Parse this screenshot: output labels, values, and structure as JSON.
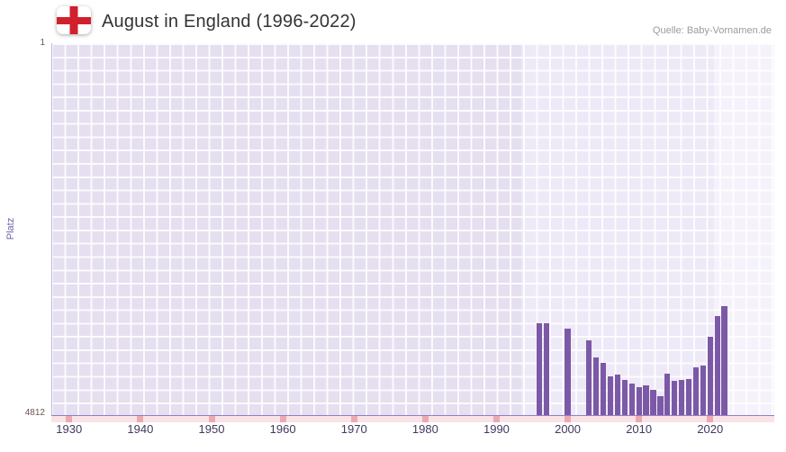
{
  "header": {
    "title": "August in England (1996-2022)",
    "source": "Quelle: Baby-Vornamen.de",
    "flag_icon": "england-st-george-cross-flag"
  },
  "chart_data": {
    "type": "bar",
    "title": "August in England (1996-2022)",
    "xlabel": "",
    "ylabel": "Platz",
    "legend": "none",
    "y_axis": {
      "min": 1,
      "max": 4812,
      "inverted": true,
      "tick_labels": [
        "1",
        "4812"
      ]
    },
    "x_axis": {
      "min": 1927.5,
      "max": 2029,
      "tick_years": [
        1930,
        1940,
        1950,
        1960,
        1970,
        1980,
        1990,
        2000,
        2010,
        2020
      ]
    },
    "plot_bands": [
      {
        "from": 1927.5,
        "to": 1993.5,
        "color": "#e5dff0"
      },
      {
        "from": 1993.5,
        "to": 2020.5,
        "color": "#eee9f7"
      },
      {
        "from": 2020.5,
        "to": 2029.0,
        "color": "#f5f2fb"
      }
    ],
    "series": [
      {
        "name": "Platz",
        "color": "#7c59a7",
        "points": [
          {
            "year": 1996,
            "rank": 3620
          },
          {
            "year": 1997,
            "rank": 3620
          },
          {
            "year": 2000,
            "rank": 3690
          },
          {
            "year": 2003,
            "rank": 3840
          },
          {
            "year": 2004,
            "rank": 4060
          },
          {
            "year": 2005,
            "rank": 4130
          },
          {
            "year": 2006,
            "rank": 4300
          },
          {
            "year": 2007,
            "rank": 4280
          },
          {
            "year": 2008,
            "rank": 4350
          },
          {
            "year": 2009,
            "rank": 4390
          },
          {
            "year": 2010,
            "rank": 4440
          },
          {
            "year": 2011,
            "rank": 4420
          },
          {
            "year": 2012,
            "rank": 4470
          },
          {
            "year": 2013,
            "rank": 4560
          },
          {
            "year": 2014,
            "rank": 4270
          },
          {
            "year": 2015,
            "rank": 4360
          },
          {
            "year": 2016,
            "rank": 4350
          },
          {
            "year": 2017,
            "rank": 4330
          },
          {
            "year": 2018,
            "rank": 4190
          },
          {
            "year": 2019,
            "rank": 4160
          },
          {
            "year": 2020,
            "rank": 3790
          },
          {
            "year": 2021,
            "rank": 3520
          },
          {
            "year": 2022,
            "rank": 3390
          }
        ]
      }
    ]
  },
  "colors": {
    "flag_red": "#d0202e",
    "title_text": "#333333",
    "source_text": "#9b9b9b",
    "plot_bg": "#e5dff0",
    "grid_line": "#ffffff",
    "bar": "#7c59a7",
    "axis_line": "#9080c6",
    "strip_bg": "#f9e3e6",
    "strip_mark": "#eda9af",
    "x_label": "#41395f",
    "y_label": "#6e5452",
    "axis_title": "#7162a8"
  }
}
